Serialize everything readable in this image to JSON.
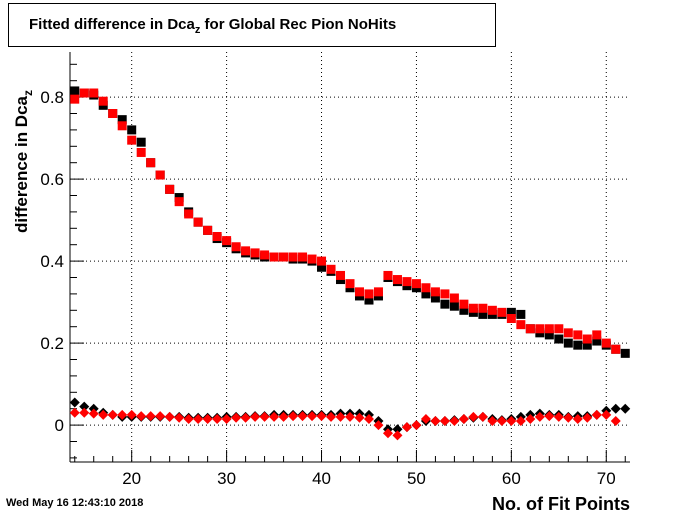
{
  "title": {
    "prefix": "Fitted difference in Dca",
    "sub": "z",
    "suffix": " for Global Rec Pion NoHits"
  },
  "timestamp": "Wed May 16 12:43:10 2018",
  "chart_data": {
    "type": "scatter",
    "xlabel": "No. of Fit Points",
    "ylabel_prefix": "difference in Dca",
    "ylabel_sub": "z",
    "xlim": [
      13.5,
      72.5
    ],
    "ylim": [
      -0.09,
      0.91
    ],
    "xticks": [
      "20",
      "30",
      "40",
      "50",
      "60",
      "70"
    ],
    "xtick_values": [
      20,
      30,
      40,
      50,
      60,
      70
    ],
    "yticks": [
      "0",
      "0.2",
      "0.4",
      "0.6",
      "0.8"
    ],
    "ytick_values": [
      0,
      0.2,
      0.4,
      0.6,
      0.8
    ],
    "grid": true,
    "series": [
      {
        "color": "#000000",
        "marker": "square",
        "x": [
          14,
          15,
          16,
          17,
          18,
          19,
          20,
          21,
          22,
          23,
          24,
          25,
          26,
          27,
          28,
          29,
          30,
          31,
          32,
          33,
          34,
          35,
          36,
          37,
          38,
          39,
          40,
          41,
          42,
          43,
          44,
          45,
          46,
          47,
          48,
          49,
          50,
          51,
          52,
          53,
          54,
          55,
          56,
          57,
          58,
          59,
          60,
          61,
          62,
          63,
          64,
          65,
          66,
          67,
          68,
          69,
          70,
          71,
          72
        ],
        "y": [
          0.815,
          0.81,
          0.805,
          0.78,
          0.76,
          0.745,
          0.72,
          0.69,
          0.64,
          0.61,
          0.575,
          0.555,
          0.52,
          0.495,
          0.475,
          0.455,
          0.445,
          0.43,
          0.42,
          0.415,
          0.41,
          0.41,
          0.41,
          0.405,
          0.405,
          0.4,
          0.385,
          0.375,
          0.355,
          0.335,
          0.315,
          0.305,
          0.315,
          0.36,
          0.35,
          0.34,
          0.335,
          0.32,
          0.31,
          0.295,
          0.29,
          0.28,
          0.275,
          0.27,
          0.27,
          0.27,
          0.275,
          0.27,
          0.235,
          0.225,
          0.22,
          0.21,
          0.2,
          0.195,
          0.195,
          0.205,
          0.195,
          0.185,
          0.175
        ]
      },
      {
        "color": "#ff0000",
        "marker": "square",
        "x": [
          14,
          15,
          16,
          17,
          18,
          19,
          20,
          21,
          22,
          23,
          24,
          25,
          26,
          27,
          28,
          29,
          30,
          31,
          32,
          33,
          34,
          35,
          36,
          37,
          38,
          39,
          40,
          41,
          42,
          43,
          44,
          45,
          46,
          47,
          48,
          49,
          50,
          51,
          52,
          53,
          54,
          55,
          56,
          57,
          58,
          59,
          60,
          61,
          62,
          63,
          64,
          65,
          66,
          67,
          68,
          69,
          70,
          71
        ],
        "y": [
          0.795,
          0.81,
          0.81,
          0.79,
          0.76,
          0.73,
          0.695,
          0.665,
          0.64,
          0.61,
          0.575,
          0.545,
          0.515,
          0.495,
          0.475,
          0.46,
          0.45,
          0.435,
          0.425,
          0.42,
          0.415,
          0.41,
          0.41,
          0.41,
          0.41,
          0.405,
          0.4,
          0.38,
          0.365,
          0.345,
          0.325,
          0.32,
          0.325,
          0.365,
          0.355,
          0.35,
          0.345,
          0.335,
          0.325,
          0.32,
          0.31,
          0.295,
          0.285,
          0.285,
          0.28,
          0.275,
          0.26,
          0.245,
          0.235,
          0.235,
          0.235,
          0.235,
          0.225,
          0.22,
          0.21,
          0.22,
          0.2,
          0.185
        ]
      },
      {
        "color": "#000000",
        "marker": "diamond",
        "x": [
          14,
          15,
          16,
          17,
          18,
          19,
          20,
          21,
          22,
          23,
          24,
          25,
          26,
          27,
          28,
          29,
          30,
          31,
          32,
          33,
          34,
          35,
          36,
          37,
          38,
          39,
          40,
          41,
          42,
          43,
          44,
          45,
          46,
          47,
          48,
          49,
          50,
          51,
          52,
          53,
          54,
          55,
          56,
          57,
          58,
          59,
          60,
          61,
          62,
          63,
          64,
          65,
          66,
          67,
          68,
          69,
          70,
          71,
          72
        ],
        "y": [
          0.055,
          0.045,
          0.04,
          0.03,
          0.025,
          0.02,
          0.02,
          0.02,
          0.02,
          0.02,
          0.02,
          0.02,
          0.018,
          0.018,
          0.018,
          0.018,
          0.02,
          0.02,
          0.02,
          0.022,
          0.022,
          0.025,
          0.025,
          0.025,
          0.025,
          0.025,
          0.025,
          0.025,
          0.028,
          0.028,
          0.028,
          0.025,
          0.01,
          -0.01,
          -0.01,
          -0.005,
          0.0,
          0.01,
          0.01,
          0.01,
          0.012,
          0.015,
          0.018,
          0.02,
          0.015,
          0.012,
          0.015,
          0.02,
          0.025,
          0.028,
          0.025,
          0.025,
          0.02,
          0.022,
          0.022,
          0.025,
          0.035,
          0.04,
          0.04
        ]
      },
      {
        "color": "#ff0000",
        "marker": "diamond",
        "x": [
          14,
          15,
          16,
          17,
          18,
          19,
          20,
          21,
          22,
          23,
          24,
          25,
          26,
          27,
          28,
          29,
          30,
          31,
          32,
          33,
          34,
          35,
          36,
          37,
          38,
          39,
          40,
          41,
          42,
          43,
          44,
          45,
          46,
          47,
          48,
          49,
          50,
          51,
          52,
          53,
          54,
          55,
          56,
          57,
          58,
          59,
          60,
          61,
          62,
          63,
          64,
          65,
          66,
          67,
          68,
          69,
          70,
          71
        ],
        "y": [
          0.03,
          0.03,
          0.028,
          0.025,
          0.025,
          0.025,
          0.025,
          0.022,
          0.022,
          0.022,
          0.02,
          0.018,
          0.015,
          0.015,
          0.015,
          0.015,
          0.015,
          0.018,
          0.018,
          0.02,
          0.02,
          0.02,
          0.02,
          0.022,
          0.022,
          0.022,
          0.022,
          0.02,
          0.02,
          0.02,
          0.018,
          0.015,
          0.0,
          -0.02,
          -0.025,
          -0.005,
          0.0,
          0.015,
          0.01,
          0.01,
          0.01,
          0.015,
          0.02,
          0.02,
          0.01,
          0.01,
          0.01,
          0.01,
          0.015,
          0.02,
          0.022,
          0.02,
          0.018,
          0.015,
          0.018,
          0.025,
          0.025,
          0.01
        ]
      }
    ]
  }
}
